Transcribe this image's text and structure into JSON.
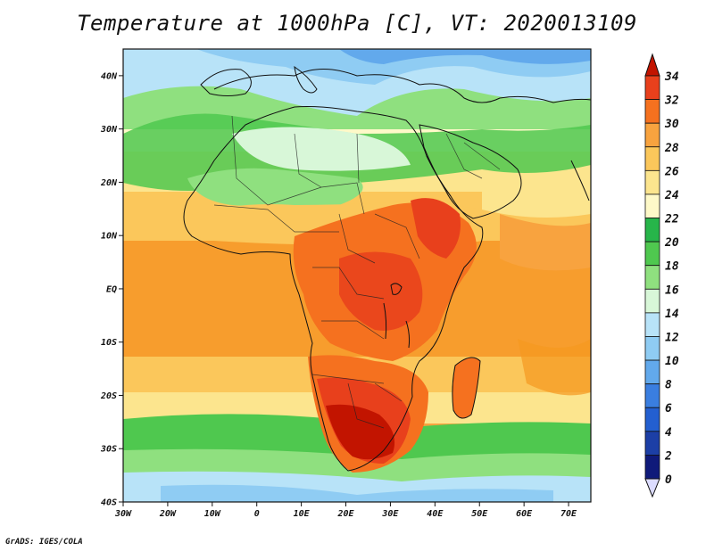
{
  "map": {
    "title": "Temperature at 1000hPa [C], VT: 2020013109",
    "credit": "GrADS: IGES/COLA",
    "variable": "Temperature",
    "level": "1000hPa",
    "units": "C",
    "valid_time": "2020013109",
    "region": "Africa, Arabian Peninsula and surrounding oceans",
    "lon_range": [
      -30,
      75
    ],
    "lat_range": [
      -40,
      45
    ],
    "lon_labels": [
      "30W",
      "20W",
      "10W",
      "0",
      "10E",
      "20E",
      "30E",
      "40E",
      "50E",
      "60E",
      "70E"
    ],
    "lat_labels": [
      "40N",
      "30N",
      "20N",
      "10N",
      "EQ",
      "10S",
      "20S",
      "30S",
      "40S"
    ],
    "features": [
      "coastlines",
      "country borders"
    ]
  },
  "colorbar": {
    "labels": [
      "34",
      "32",
      "30",
      "28",
      "26",
      "24",
      "22",
      "20",
      "18",
      "16",
      "14",
      "12",
      "10",
      "8",
      "6",
      "4",
      "2",
      "0"
    ],
    "colors": [
      "#c21400",
      "#e8401c",
      "#f5711f",
      "#f8a33f",
      "#fbc75b",
      "#fce58e",
      "#fef9c8",
      "#27b54a",
      "#4fc84f",
      "#8fe07f",
      "#d8f7d8",
      "#b8e3f8",
      "#8fccf3",
      "#62a9ec",
      "#3a7ee0",
      "#235fd0",
      "#1c3fa6",
      "#0f1a7a",
      "#dcdcff"
    ]
  }
}
